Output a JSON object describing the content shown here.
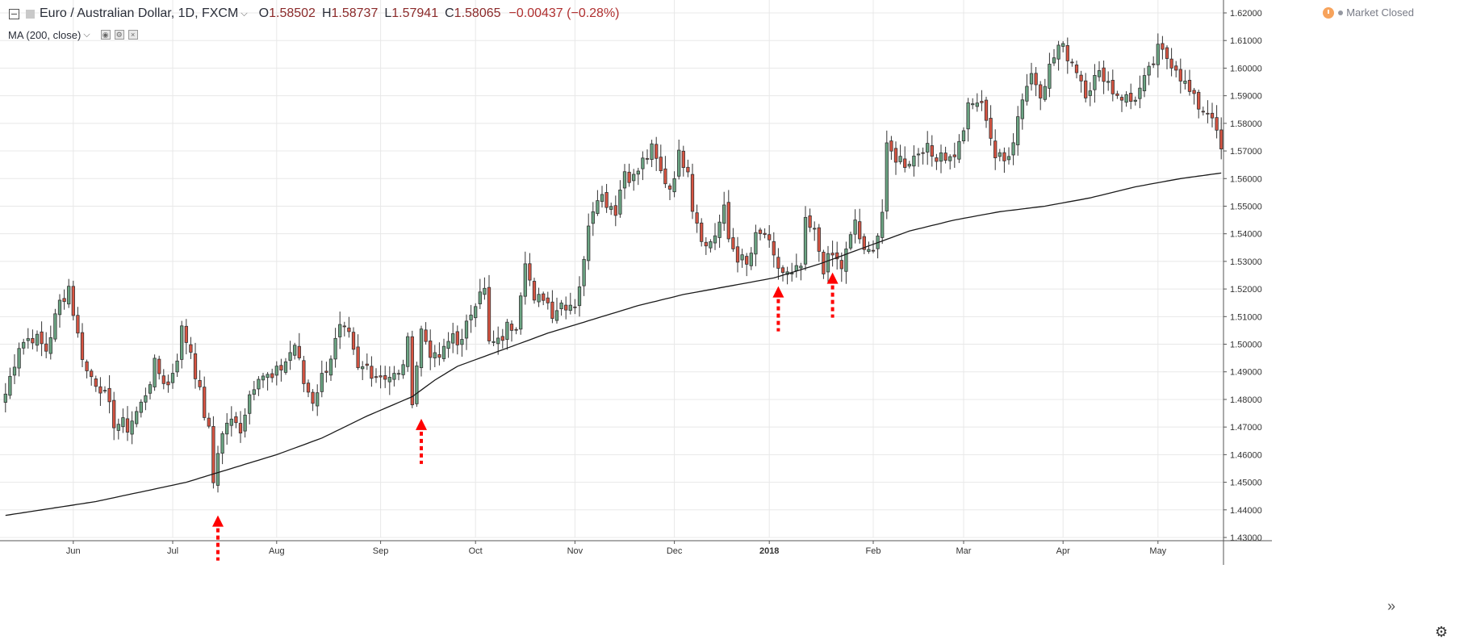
{
  "header": {
    "symbol": "Euro / Australian Dollar, 1D, FXCM",
    "open_label": "O",
    "open": "1.58502",
    "high_label": "H",
    "high": "1.58737",
    "low_label": "L",
    "low": "1.57941",
    "close_label": "C",
    "close": "1.58065",
    "change": "−0.00437 (−0.28%)",
    "market_status": "Market Closed"
  },
  "study": {
    "label": "MA (200, close)"
  },
  "colors": {
    "up": "#6ba583",
    "down": "#d75442",
    "ma": "#1a1a1a",
    "marker": "#ff0000",
    "grid": "#e8e8e8"
  },
  "chart_data": {
    "type": "candlestick",
    "y_range": [
      1.43,
      1.62
    ],
    "y_ticks": [
      "1.62000",
      "1.61000",
      "1.60000",
      "1.59000",
      "1.58000",
      "1.57000",
      "1.56000",
      "1.55000",
      "1.54000",
      "1.53000",
      "1.52000",
      "1.51000",
      "1.50000",
      "1.49000",
      "1.48000",
      "1.47000",
      "1.46000",
      "1.45000",
      "1.44000",
      "1.43000"
    ],
    "x_ticks": [
      {
        "label": "Jun",
        "bar": 15
      },
      {
        "label": "Jul",
        "bar": 37
      },
      {
        "label": "Aug",
        "bar": 60
      },
      {
        "label": "Sep",
        "bar": 83
      },
      {
        "label": "Oct",
        "bar": 104
      },
      {
        "label": "Nov",
        "bar": 126
      },
      {
        "label": "Dec",
        "bar": 148
      },
      {
        "label": "2018",
        "bar": 169
      },
      {
        "label": "Feb",
        "bar": 192
      },
      {
        "label": "Mar",
        "bar": 212
      },
      {
        "label": "Apr",
        "bar": 234
      },
      {
        "label": "May",
        "bar": 255
      }
    ],
    "bar_count": 270,
    "anchors": [
      [
        0,
        1.482
      ],
      [
        3,
        1.5
      ],
      [
        6,
        1.503
      ],
      [
        9,
        1.498
      ],
      [
        12,
        1.515
      ],
      [
        14,
        1.521
      ],
      [
        16,
        1.503
      ],
      [
        18,
        1.49
      ],
      [
        21,
        1.485
      ],
      [
        24,
        1.472
      ],
      [
        27,
        1.47
      ],
      [
        30,
        1.478
      ],
      [
        33,
        1.492
      ],
      [
        36,
        1.485
      ],
      [
        38,
        1.496
      ],
      [
        39,
        1.505
      ],
      [
        41,
        1.498
      ],
      [
        43,
        1.482
      ],
      [
        45,
        1.468
      ],
      [
        46,
        1.45
      ],
      [
        47,
        1.462
      ],
      [
        49,
        1.472
      ],
      [
        52,
        1.47
      ],
      [
        54,
        1.482
      ],
      [
        56,
        1.49
      ],
      [
        59,
        1.487
      ],
      [
        62,
        1.494
      ],
      [
        64,
        1.5
      ],
      [
        66,
        1.486
      ],
      [
        68,
        1.48
      ],
      [
        70,
        1.488
      ],
      [
        72,
        1.496
      ],
      [
        74,
        1.505
      ],
      [
        76,
        1.502
      ],
      [
        78,
        1.49
      ],
      [
        80,
        1.492
      ],
      [
        82,
        1.489
      ],
      [
        84,
        1.489
      ],
      [
        87,
        1.488
      ],
      [
        89,
        1.5
      ],
      [
        90,
        1.481
      ],
      [
        92,
        1.505
      ],
      [
        95,
        1.494
      ],
      [
        97,
        1.497
      ],
      [
        99,
        1.504
      ],
      [
        101,
        1.5
      ],
      [
        103,
        1.512
      ],
      [
        105,
        1.521
      ],
      [
        106,
        1.519
      ],
      [
        107,
        1.5
      ],
      [
        109,
        1.5
      ],
      [
        111,
        1.506
      ],
      [
        113,
        1.508
      ],
      [
        115,
        1.532
      ],
      [
        117,
        1.514
      ],
      [
        119,
        1.518
      ],
      [
        121,
        1.512
      ],
      [
        123,
        1.515
      ],
      [
        126,
        1.515
      ],
      [
        128,
        1.529
      ],
      [
        129,
        1.545
      ],
      [
        131,
        1.555
      ],
      [
        133,
        1.552
      ],
      [
        135,
        1.549
      ],
      [
        137,
        1.563
      ],
      [
        139,
        1.56
      ],
      [
        141,
        1.566
      ],
      [
        143,
        1.57
      ],
      [
        145,
        1.562
      ],
      [
        147,
        1.557
      ],
      [
        149,
        1.568
      ],
      [
        151,
        1.565
      ],
      [
        152,
        1.55
      ],
      [
        154,
        1.54
      ],
      [
        155,
        1.535
      ],
      [
        157,
        1.54
      ],
      [
        159,
        1.548
      ],
      [
        160,
        1.538
      ],
      [
        162,
        1.532
      ],
      [
        164,
        1.528
      ],
      [
        166,
        1.538
      ],
      [
        168,
        1.54
      ],
      [
        170,
        1.53
      ],
      [
        172,
        1.526
      ],
      [
        174,
        1.524
      ],
      [
        176,
        1.528
      ],
      [
        177,
        1.543
      ],
      [
        179,
        1.54
      ],
      [
        181,
        1.528
      ],
      [
        183,
        1.532
      ],
      [
        185,
        1.528
      ],
      [
        187,
        1.538
      ],
      [
        188,
        1.545
      ],
      [
        190,
        1.532
      ],
      [
        191,
        1.533
      ],
      [
        193,
        1.54
      ],
      [
        194,
        1.548
      ],
      [
        195,
        1.57
      ],
      [
        197,
        1.568
      ],
      [
        199,
        1.566
      ],
      [
        201,
        1.568
      ],
      [
        203,
        1.572
      ],
      [
        205,
        1.568
      ],
      [
        207,
        1.57
      ],
      [
        209,
        1.567
      ],
      [
        211,
        1.572
      ],
      [
        213,
        1.585
      ],
      [
        215,
        1.588
      ],
      [
        217,
        1.583
      ],
      [
        219,
        1.568
      ],
      [
        221,
        1.566
      ],
      [
        223,
        1.575
      ],
      [
        225,
        1.59
      ],
      [
        227,
        1.598
      ],
      [
        229,
        1.592
      ],
      [
        231,
        1.6
      ],
      [
        233,
        1.608
      ],
      [
        235,
        1.605
      ],
      [
        237,
        1.6
      ],
      [
        239,
        1.592
      ],
      [
        241,
        1.596
      ],
      [
        243,
        1.598
      ],
      [
        245,
        1.592
      ],
      [
        247,
        1.59
      ],
      [
        249,
        1.588
      ],
      [
        251,
        1.592
      ],
      [
        253,
        1.598
      ],
      [
        255,
        1.606
      ],
      [
        257,
        1.604
      ],
      [
        259,
        1.601
      ],
      [
        261,
        1.594
      ],
      [
        263,
        1.588
      ],
      [
        265,
        1.585
      ],
      [
        267,
        1.584
      ],
      [
        268,
        1.575
      ],
      [
        269,
        1.57
      ]
    ],
    "ma_anchors": [
      [
        0,
        1.438
      ],
      [
        20,
        1.443
      ],
      [
        40,
        1.45
      ],
      [
        50,
        1.455
      ],
      [
        60,
        1.46
      ],
      [
        70,
        1.466
      ],
      [
        80,
        1.474
      ],
      [
        90,
        1.481
      ],
      [
        95,
        1.487
      ],
      [
        100,
        1.492
      ],
      [
        110,
        1.498
      ],
      [
        120,
        1.504
      ],
      [
        130,
        1.509
      ],
      [
        140,
        1.514
      ],
      [
        150,
        1.518
      ],
      [
        160,
        1.521
      ],
      [
        170,
        1.524
      ],
      [
        180,
        1.529
      ],
      [
        190,
        1.535
      ],
      [
        200,
        1.541
      ],
      [
        210,
        1.545
      ],
      [
        220,
        1.548
      ],
      [
        230,
        1.55
      ],
      [
        240,
        1.553
      ],
      [
        250,
        1.557
      ],
      [
        260,
        1.56
      ],
      [
        269,
        1.562
      ]
    ],
    "markers": [
      {
        "bar": 47,
        "value": 1.438
      },
      {
        "bar": 92,
        "value": 1.473
      },
      {
        "bar": 171,
        "value": 1.521
      },
      {
        "bar": 183,
        "value": 1.526
      }
    ]
  }
}
